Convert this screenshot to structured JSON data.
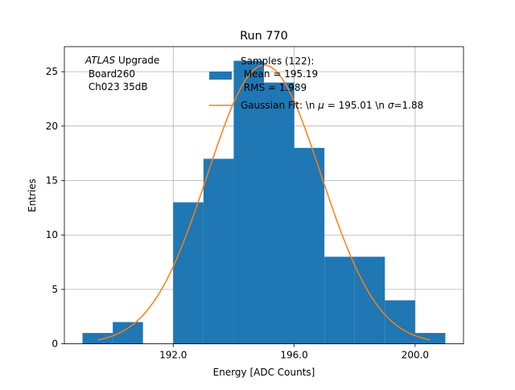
{
  "chart_data": {
    "type": "bar",
    "title": "Run 770",
    "xlabel": "Energy [ADC Counts]",
    "ylabel": "Entries",
    "xlim": [
      188.4,
      201.6
    ],
    "ylim": [
      0,
      27.3
    ],
    "grid": true,
    "x_ticks": [
      192,
      196,
      200
    ],
    "x_tick_labels": [
      "192.0",
      "196.0",
      "200.0"
    ],
    "y_ticks": [
      0,
      5,
      10,
      15,
      20,
      25
    ],
    "y_tick_labels": [
      "0",
      "5",
      "10",
      "15",
      "20",
      "25"
    ],
    "bins": [
      {
        "x0": 189,
        "x1": 190,
        "count": 1
      },
      {
        "x0": 190,
        "x1": 191,
        "count": 2
      },
      {
        "x0": 191,
        "x1": 192,
        "count": 0
      },
      {
        "x0": 192,
        "x1": 193,
        "count": 13
      },
      {
        "x0": 193,
        "x1": 194,
        "count": 17
      },
      {
        "x0": 194,
        "x1": 195,
        "count": 26
      },
      {
        "x0": 195,
        "x1": 196,
        "count": 24
      },
      {
        "x0": 196,
        "x1": 197,
        "count": 18
      },
      {
        "x0": 197,
        "x1": 198,
        "count": 8
      },
      {
        "x0": 198,
        "x1": 199,
        "count": 8
      },
      {
        "x0": 199,
        "x1": 200,
        "count": 4
      },
      {
        "x0": 200,
        "x1": 201,
        "count": 1
      }
    ],
    "fit": {
      "name": "Gaussian Fit",
      "mu": 195.01,
      "sigma": 1.88,
      "amplitude": 25.6,
      "x_range": [
        189.5,
        200.5
      ]
    },
    "series": [
      {
        "name": "Samples (122):",
        "color": "#1f77b4"
      },
      {
        "name": "Gaussian Fit",
        "color": "#ff7f0e"
      }
    ],
    "legend": {
      "position": "top-right",
      "hist_lines": [
        "Samples (122):",
        " Mean = 195.19",
        " RMS = 1.989"
      ],
      "fit_label_pre": "Gaussian Fit: \\n ",
      "mu_symbol": "μ",
      "fit_label_mid": " = 195.01 \\n ",
      "sigma_symbol": "σ",
      "fit_label_post": "=1.88"
    },
    "annotation": {
      "italic": "ATLAS",
      "line1_rest": " Upgrade",
      "line2": " Board260",
      "line3": " Ch023 35dB"
    }
  }
}
